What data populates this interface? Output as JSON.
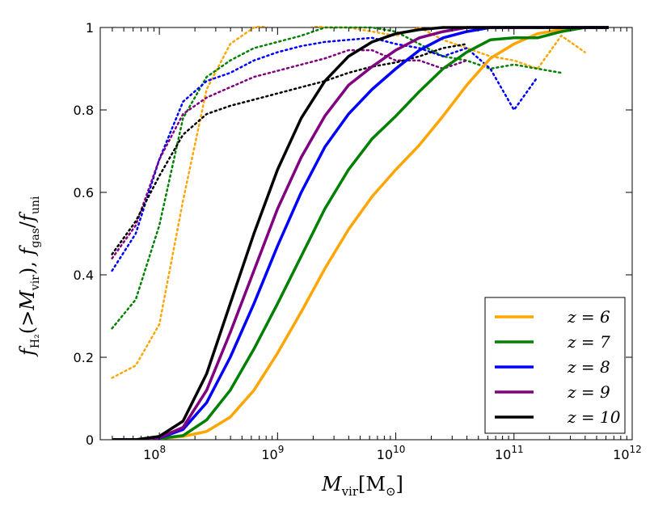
{
  "chart_data": {
    "type": "line",
    "xlabel": "M_vir[M_⊙]",
    "ylabel": "f_H2(>M_vir), f_gas/f_uni",
    "xscale": "log",
    "xlim_log10": [
      7.5,
      12
    ],
    "ylim": [
      0,
      1
    ],
    "xticks": [
      {
        "exp": 8,
        "base": "10",
        "sup": "8"
      },
      {
        "exp": 9,
        "base": "10",
        "sup": "9"
      },
      {
        "exp": 10,
        "base": "10",
        "sup": "10"
      },
      {
        "exp": 11,
        "base": "10",
        "sup": "11"
      },
      {
        "exp": 12,
        "base": "10",
        "sup": "12"
      }
    ],
    "yticks": [
      {
        "value": 0,
        "label": "0"
      },
      {
        "value": 0.2,
        "label": "0.2"
      },
      {
        "value": 0.4,
        "label": "0.4"
      },
      {
        "value": 0.6,
        "label": "0.6"
      },
      {
        "value": 0.8,
        "label": "0.8"
      },
      {
        "value": 1.0,
        "label": "1"
      }
    ],
    "legend_position": "bottom-right",
    "series": [
      {
        "name": "z=6",
        "legend_label": "z = 6",
        "color": "#ffa500",
        "solid": {
          "x": [
            7.6,
            7.8,
            8.0,
            8.2,
            8.4,
            8.6,
            8.8,
            9.0,
            9.2,
            9.4,
            9.6,
            9.8,
            10.0,
            10.2,
            10.4,
            10.6,
            10.8,
            11.0,
            11.2,
            11.4,
            11.6,
            11.8
          ],
          "y": [
            0,
            0,
            0.003,
            0.008,
            0.02,
            0.055,
            0.12,
            0.21,
            0.31,
            0.415,
            0.51,
            0.59,
            0.655,
            0.715,
            0.785,
            0.86,
            0.925,
            0.96,
            0.985,
            0.995,
            1.0,
            1.0
          ]
        },
        "dotted": {
          "x": [
            7.6,
            7.8,
            8.0,
            8.2,
            8.4,
            8.6,
            8.8,
            9.0,
            9.2,
            9.4,
            9.6,
            9.8,
            10.0,
            10.2,
            10.4,
            10.6,
            10.8,
            11.0,
            11.2,
            11.4,
            11.6
          ],
          "y": [
            0.15,
            0.18,
            0.28,
            0.58,
            0.85,
            0.96,
            1.0,
            1.01,
            1.01,
            1.0,
            1.0,
            0.99,
            0.98,
            1.0,
            0.97,
            0.95,
            0.93,
            0.92,
            0.9,
            0.98,
            0.94
          ]
        }
      },
      {
        "name": "z=7",
        "legend_label": "z = 7",
        "color": "#008000",
        "solid": {
          "x": [
            7.6,
            7.8,
            8.0,
            8.2,
            8.4,
            8.6,
            8.8,
            9.0,
            9.2,
            9.4,
            9.6,
            9.8,
            10.0,
            10.2,
            10.4,
            10.6,
            10.8,
            11.0,
            11.2,
            11.4,
            11.6,
            11.8
          ],
          "y": [
            0,
            0,
            0.003,
            0.01,
            0.048,
            0.12,
            0.22,
            0.33,
            0.445,
            0.56,
            0.655,
            0.73,
            0.785,
            0.845,
            0.9,
            0.94,
            0.97,
            0.975,
            0.975,
            0.99,
            1.0,
            1.0
          ]
        },
        "dotted": {
          "x": [
            7.6,
            7.8,
            8.0,
            8.2,
            8.4,
            8.6,
            8.8,
            9.0,
            9.2,
            9.4,
            9.6,
            9.8,
            10.0,
            10.2,
            10.4,
            10.6,
            10.8,
            11.0,
            11.2,
            11.4
          ],
          "y": [
            0.27,
            0.34,
            0.52,
            0.78,
            0.88,
            0.92,
            0.95,
            0.965,
            0.98,
            1.0,
            1.0,
            1.0,
            0.99,
            0.96,
            0.93,
            0.92,
            0.9,
            0.91,
            0.9,
            0.89
          ]
        }
      },
      {
        "name": "z=8",
        "legend_label": "z = 8",
        "color": "#0000ff",
        "solid": {
          "x": [
            7.6,
            7.8,
            8.0,
            8.2,
            8.4,
            8.6,
            8.8,
            9.0,
            9.2,
            9.4,
            9.6,
            9.8,
            10.0,
            10.2,
            10.4,
            10.6,
            10.8,
            11.0,
            11.2,
            11.4,
            11.6,
            11.8
          ],
          "y": [
            0,
            0,
            0.004,
            0.025,
            0.09,
            0.2,
            0.33,
            0.47,
            0.6,
            0.71,
            0.79,
            0.85,
            0.9,
            0.945,
            0.975,
            0.99,
            1.0,
            1.0,
            1.0,
            1.0,
            1.0,
            1.0
          ]
        },
        "dotted": {
          "x": [
            7.6,
            7.8,
            8.0,
            8.2,
            8.4,
            8.6,
            8.8,
            9.0,
            9.2,
            9.4,
            9.6,
            9.8,
            10.0,
            10.2,
            10.4,
            10.6,
            10.8,
            11.0,
            11.2
          ],
          "y": [
            0.41,
            0.5,
            0.68,
            0.82,
            0.87,
            0.89,
            0.92,
            0.94,
            0.955,
            0.965,
            0.97,
            0.975,
            0.96,
            0.95,
            0.93,
            0.95,
            0.9,
            0.8,
            0.88
          ]
        }
      },
      {
        "name": "z=9",
        "legend_label": "z = 9",
        "color": "#800080",
        "solid": {
          "x": [
            7.6,
            7.8,
            8.0,
            8.2,
            8.4,
            8.6,
            8.8,
            9.0,
            9.2,
            9.4,
            9.6,
            9.8,
            10.0,
            10.2,
            10.4,
            10.6,
            10.8,
            11.0,
            11.2,
            11.4,
            11.6,
            11.8
          ],
          "y": [
            0,
            0,
            0.005,
            0.03,
            0.12,
            0.26,
            0.41,
            0.56,
            0.685,
            0.785,
            0.86,
            0.905,
            0.945,
            0.975,
            0.99,
            1.0,
            1.0,
            1.0,
            1.0,
            1.0,
            1.0,
            1.0
          ]
        },
        "dotted": {
          "x": [
            7.6,
            7.8,
            8.0,
            8.2,
            8.4,
            8.6,
            8.8,
            9.0,
            9.2,
            9.4,
            9.6,
            9.8,
            10.0,
            10.2,
            10.4,
            10.6
          ],
          "y": [
            0.44,
            0.52,
            0.68,
            0.79,
            0.83,
            0.855,
            0.88,
            0.895,
            0.91,
            0.925,
            0.945,
            0.945,
            0.92,
            0.92,
            0.9,
            0.92
          ]
        }
      },
      {
        "name": "z=10",
        "legend_label": "z = 10",
        "color": "#000000",
        "solid": {
          "x": [
            7.6,
            7.8,
            8.0,
            8.2,
            8.4,
            8.6,
            8.8,
            9.0,
            9.2,
            9.4,
            9.6,
            9.8,
            10.0,
            10.2,
            10.4,
            10.6,
            10.8,
            11.0,
            11.2,
            11.4,
            11.6,
            11.8
          ],
          "y": [
            0,
            0,
            0.008,
            0.045,
            0.16,
            0.33,
            0.5,
            0.655,
            0.78,
            0.87,
            0.93,
            0.965,
            0.985,
            0.995,
            1.0,
            1.0,
            1.0,
            1.0,
            1.0,
            1.0,
            1.0,
            1.0
          ]
        },
        "dotted": {
          "x": [
            7.6,
            7.8,
            8.0,
            8.2,
            8.4,
            8.6,
            8.8,
            9.0,
            9.2,
            9.4,
            9.6,
            9.8,
            10.0,
            10.2,
            10.4,
            10.6
          ],
          "y": [
            0.45,
            0.53,
            0.64,
            0.74,
            0.79,
            0.81,
            0.825,
            0.84,
            0.855,
            0.87,
            0.89,
            0.905,
            0.915,
            0.93,
            0.95,
            0.96
          ]
        }
      }
    ]
  }
}
